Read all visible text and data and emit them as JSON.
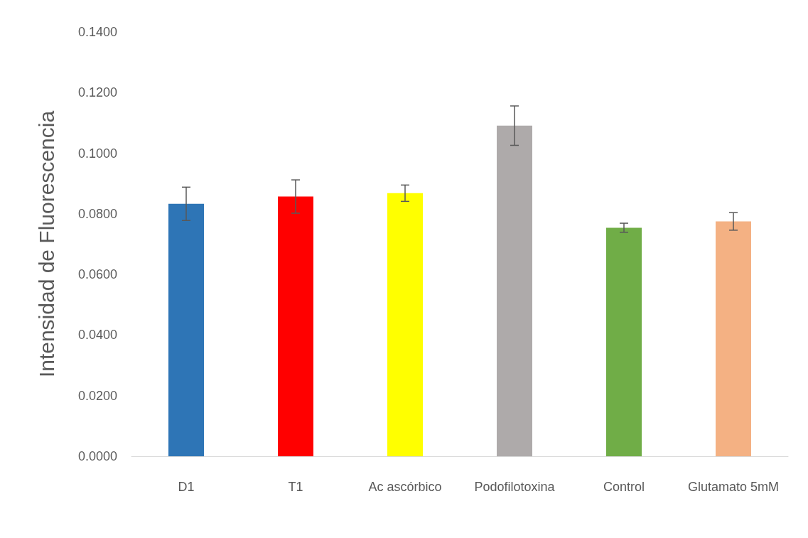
{
  "chart_data": {
    "type": "bar",
    "ylabel": "Intensidad de Fluorescencia",
    "categories": [
      "D1",
      "T1",
      "Ac ascórbico",
      "Podofilotoxina",
      "Control",
      "Glutamato 5mM"
    ],
    "values": [
      0.0833,
      0.0857,
      0.0868,
      0.1091,
      0.0754,
      0.0775
    ],
    "errors": [
      0.0055,
      0.0055,
      0.0027,
      0.0065,
      0.0015,
      0.0029
    ],
    "colors": [
      "#2e75b6",
      "#ff0000",
      "#ffff00",
      "#aeaaaa",
      "#70ad47",
      "#f4b183"
    ],
    "ylim": [
      0,
      0.14
    ],
    "yticks": [
      {
        "value": 0,
        "label": "0.0000"
      },
      {
        "value": 0.02,
        "label": "0.0200"
      },
      {
        "value": 0.04,
        "label": "0.0400"
      },
      {
        "value": 0.06,
        "label": "0.0600"
      },
      {
        "value": 0.08,
        "label": "0.0800"
      },
      {
        "value": 0.1,
        "label": "0.1000"
      },
      {
        "value": 0.12,
        "label": "0.1200"
      },
      {
        "value": 0.14,
        "label": "0.1400"
      }
    ],
    "grid": false
  }
}
